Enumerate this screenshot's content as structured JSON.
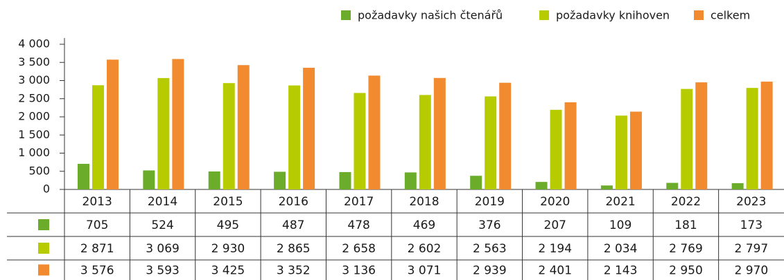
{
  "chart_data": {
    "type": "bar",
    "categories": [
      "2013",
      "2014",
      "2015",
      "2016",
      "2017",
      "2018",
      "2019",
      "2020",
      "2021",
      "2022",
      "2023"
    ],
    "series": [
      {
        "name": "požadavky našich čtenářů",
        "color": "#6bad2b",
        "values": [
          705,
          524,
          495,
          487,
          478,
          469,
          376,
          207,
          109,
          181,
          173
        ]
      },
      {
        "name": "požadavky knihoven",
        "color": "#b7cc00",
        "values": [
          2871,
          3069,
          2930,
          2865,
          2658,
          2602,
          2563,
          2194,
          2034,
          2769,
          2797
        ],
        "value_labels": [
          "2 871",
          "3 069",
          "2 930",
          "2 865",
          "2 658",
          "2 602",
          "2 563",
          "2 194",
          "2 034",
          "2 769",
          "2 797"
        ]
      },
      {
        "name": "celkem",
        "color": "#f28a30",
        "values": [
          3576,
          3593,
          3425,
          3352,
          3136,
          3071,
          2939,
          2401,
          2143,
          2950,
          2970
        ],
        "value_labels": [
          "3 576",
          "3 593",
          "3 425",
          "3 352",
          "3 136",
          "3 071",
          "2 939",
          "2 401",
          "2 143",
          "2 950",
          "2 970"
        ]
      }
    ],
    "ylim": [
      0,
      4000
    ],
    "yticks": [
      0,
      500,
      {
        "value": 1000,
        "label": "1 000"
      },
      {
        "value": 1500,
        "label": "1 500"
      },
      {
        "value": 2000,
        "label": "2 000"
      },
      {
        "value": 2500,
        "label": "2 500"
      },
      {
        "value": 3000,
        "label": "3 000"
      },
      {
        "value": 3500,
        "label": "3 500"
      },
      {
        "value": 4000,
        "label": "4 000"
      }
    ],
    "grid": false,
    "legend": "top-right"
  }
}
